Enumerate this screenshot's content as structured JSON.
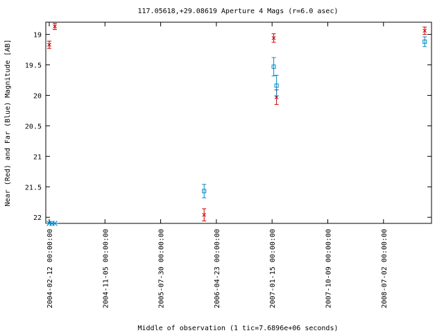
{
  "chart_data": {
    "type": "scatter",
    "title": "117.05618,+29.08619   Aperture 4 Mags (r=6.0 asec)",
    "xlabel": "Middle of observation (1 tic=7.6896e+06 seconds)",
    "ylabel": "Near (Red) and Far (Blue) Magnitude [AB]",
    "y_inverted": true,
    "ylim": [
      22.1,
      18.8
    ],
    "grid": false,
    "legend": "none",
    "x_tick_labels": [
      "2004-02-12 00:00:00",
      "2004-11-05 00:00:00",
      "2005-07-30 00:00:00",
      "2006-04-23 00:00:00",
      "2007-01-15 00:00:00",
      "2007-10-09 00:00:00",
      "2008-07-02 00:00:00"
    ],
    "x_ticks_tic": [
      0,
      1,
      2,
      3,
      4,
      5,
      6
    ],
    "xlim_tic": [
      0,
      6.8
    ],
    "y_ticks": [
      19,
      19.5,
      20,
      20.5,
      21,
      21.5,
      22
    ],
    "y_tick_labels": [
      "19",
      "19.5",
      "20",
      "20.5",
      "21",
      "21.5",
      "22"
    ],
    "series": [
      {
        "color": "#cc0000",
        "marker": "x",
        "points": [
          {
            "x": 0.0,
            "y": 19.17,
            "err": 0.06
          },
          {
            "x": 0.1,
            "y": 18.87,
            "err": 0.05
          },
          {
            "x": 2.78,
            "y": 21.96,
            "err": 0.1
          },
          {
            "x": 4.03,
            "y": 19.06,
            "err": 0.07
          },
          {
            "x": 4.08,
            "y": 20.03,
            "err": 0.12
          },
          {
            "x": 6.74,
            "y": 18.94,
            "err": 0.06
          }
        ]
      },
      {
        "color": "#0088cc",
        "marker": "square",
        "points": [
          {
            "x": 2.78,
            "y": 21.57,
            "err": 0.11
          },
          {
            "x": 4.03,
            "y": 19.53,
            "err": 0.15
          },
          {
            "x": 4.08,
            "y": 19.84,
            "err": 0.17
          },
          {
            "x": 6.74,
            "y": 19.12,
            "err": 0.08
          }
        ]
      }
    ],
    "limit_markers": {
      "color": "#0088cc",
      "marker": "asterisk",
      "y": 22.1,
      "x": [
        0.0,
        0.05,
        0.1
      ]
    }
  }
}
